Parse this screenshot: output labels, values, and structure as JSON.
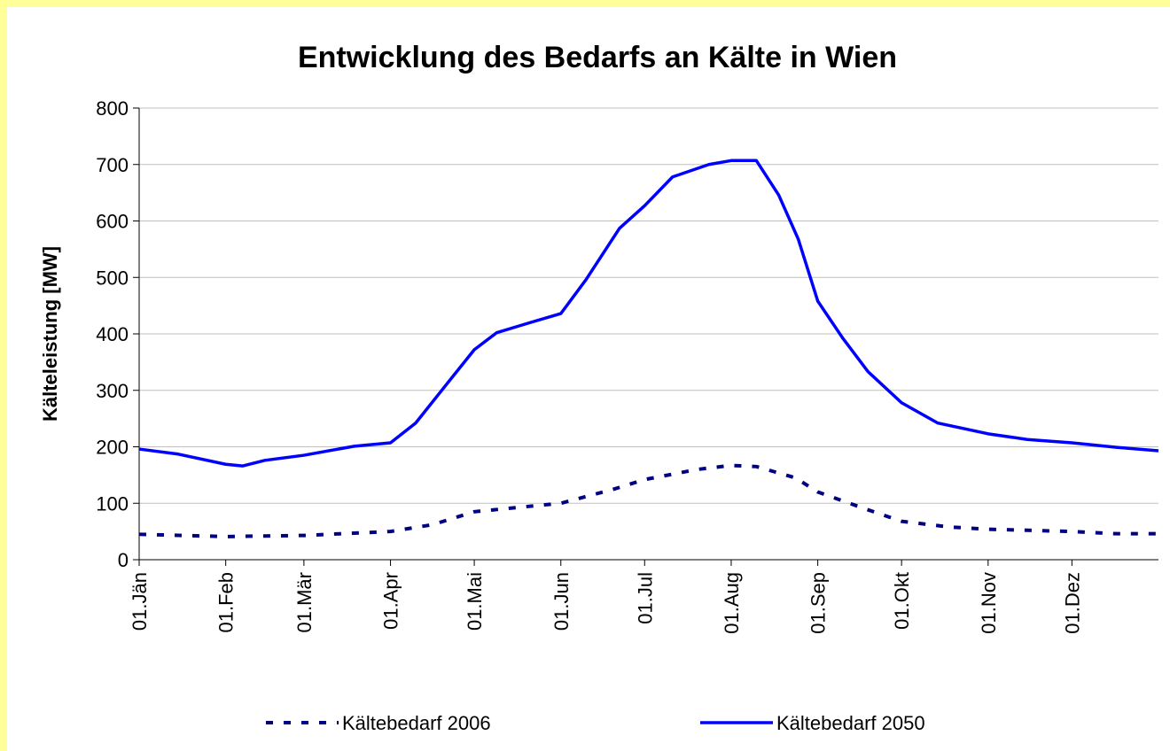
{
  "chart_data": {
    "type": "line",
    "title": "Entwicklung des Bedarfs an Kälte in Wien",
    "y_label": "Kälteleistung [MW]",
    "xlim": [
      0,
      365
    ],
    "xticks": [
      {
        "value": 0,
        "label": "01.Jän"
      },
      {
        "value": 31,
        "label": "01.Feb"
      },
      {
        "value": 59,
        "label": "01.Mär"
      },
      {
        "value": 90,
        "label": "01.Apr"
      },
      {
        "value": 120,
        "label": "01.Mai"
      },
      {
        "value": 151,
        "label": "01.Jun"
      },
      {
        "value": 181,
        "label": "01.Jul"
      },
      {
        "value": 212,
        "label": "01.Aug"
      },
      {
        "value": 243,
        "label": "01.Sep"
      },
      {
        "value": 273,
        "label": "01.Okt"
      },
      {
        "value": 304,
        "label": "01.Nov"
      },
      {
        "value": 334,
        "label": "01.Dez"
      }
    ],
    "ylim": [
      0,
      800
    ],
    "yticks": [
      0,
      100,
      200,
      300,
      400,
      500,
      600,
      700,
      800
    ],
    "grid": true,
    "legend": "bottom",
    "series": [
      {
        "name": "Kältebedarf 2006",
        "color": "#000080",
        "dashed": true,
        "x": [
          0,
          31,
          59,
          90,
          105,
          120,
          151,
          170,
          181,
          200,
          212,
          221,
          235,
          243,
          260,
          273,
          290,
          304,
          334,
          350,
          365
        ],
        "values": [
          45,
          41,
          43,
          50,
          62,
          85,
          100,
          125,
          142,
          160,
          167,
          165,
          145,
          120,
          90,
          68,
          58,
          54,
          50,
          46,
          46
        ]
      },
      {
        "name": "Kältebedarf 2050",
        "color": "#0000ff",
        "dashed": false,
        "x": [
          0,
          14,
          31,
          37,
          45,
          59,
          77,
          90,
          99,
          109,
          120,
          128,
          140,
          151,
          160,
          172,
          181,
          191,
          204,
          212,
          221,
          229,
          236,
          243,
          252,
          261,
          273,
          286,
          304,
          318,
          334,
          350,
          365
        ],
        "values": [
          196,
          187,
          169,
          166,
          176,
          185,
          201,
          207,
          242,
          304,
          372,
          402,
          420,
          436,
          496,
          587,
          627,
          678,
          700,
          707,
          707,
          646,
          568,
          458,
          392,
          333,
          278,
          242,
          223,
          213,
          207,
          199,
          193
        ]
      }
    ]
  }
}
